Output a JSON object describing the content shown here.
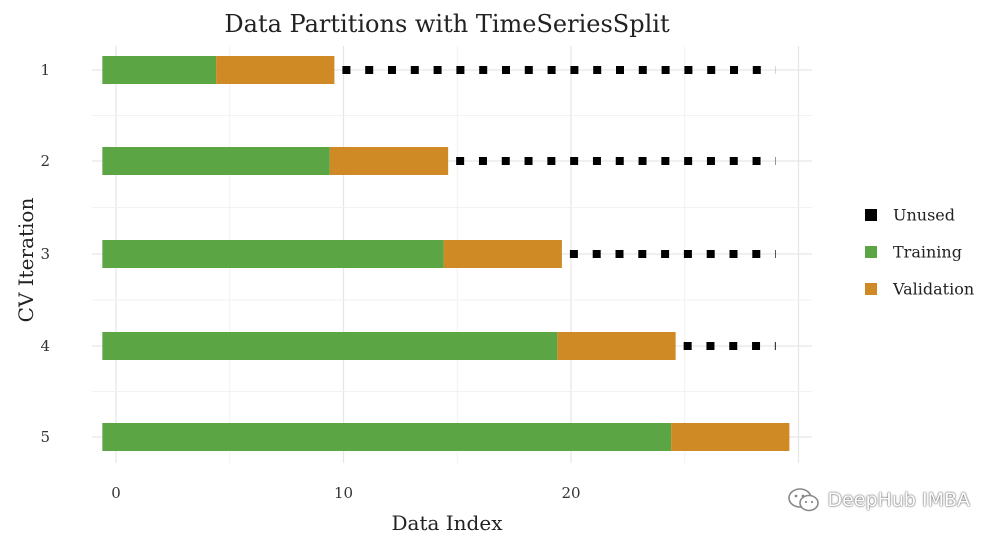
{
  "chart_data": {
    "type": "bar",
    "title": "Data Partitions with TimeSeriesSplit",
    "xlabel": "Data Index",
    "ylabel": "CV Iteration",
    "xlim": [
      -0.6,
      30.2
    ],
    "x_ticks": [
      0,
      10,
      20
    ],
    "categories": [
      "1",
      "2",
      "3",
      "4",
      "5"
    ],
    "series": [
      {
        "name": "Training",
        "color": "#5ca544",
        "starts": [
          -0.6,
          -0.6,
          -0.6,
          -0.6,
          -0.6
        ],
        "ends": [
          4.4,
          9.4,
          14.4,
          19.4,
          24.4
        ]
      },
      {
        "name": "Validation",
        "color": "#d08a25",
        "starts": [
          4.4,
          9.4,
          14.4,
          19.4,
          24.4
        ],
        "ends": [
          9.6,
          14.6,
          19.6,
          24.6,
          29.6
        ]
      },
      {
        "name": "Unused",
        "color": "#000000",
        "starts": [
          9.6,
          14.6,
          19.6,
          24.6,
          null
        ],
        "ends": [
          29.0,
          29.0,
          29.0,
          29.0,
          null
        ]
      }
    ],
    "legend": {
      "position": "right",
      "items": [
        {
          "label": "Unused",
          "color": "#000000"
        },
        {
          "label": "Training",
          "color": "#5ca544"
        },
        {
          "label": "Validation",
          "color": "#d08a25"
        }
      ]
    },
    "grid": true
  },
  "watermark": {
    "text": "DeepHub IMBA",
    "icon": "wechat-icon"
  }
}
